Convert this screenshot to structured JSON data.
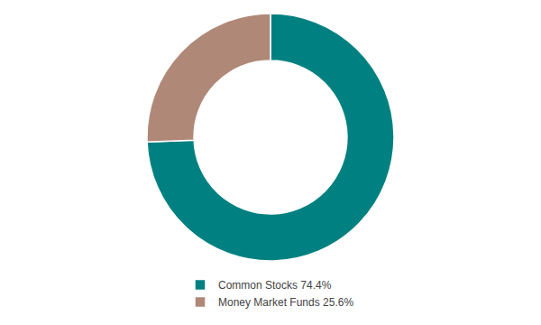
{
  "chart_data": {
    "type": "donut",
    "categories": [
      "Common Stocks 74.4%",
      "Money Market Funds 25.6%"
    ],
    "values": [
      74.4,
      25.6
    ],
    "colors": [
      "#008080",
      "#b08878"
    ],
    "legend": "bottom"
  }
}
